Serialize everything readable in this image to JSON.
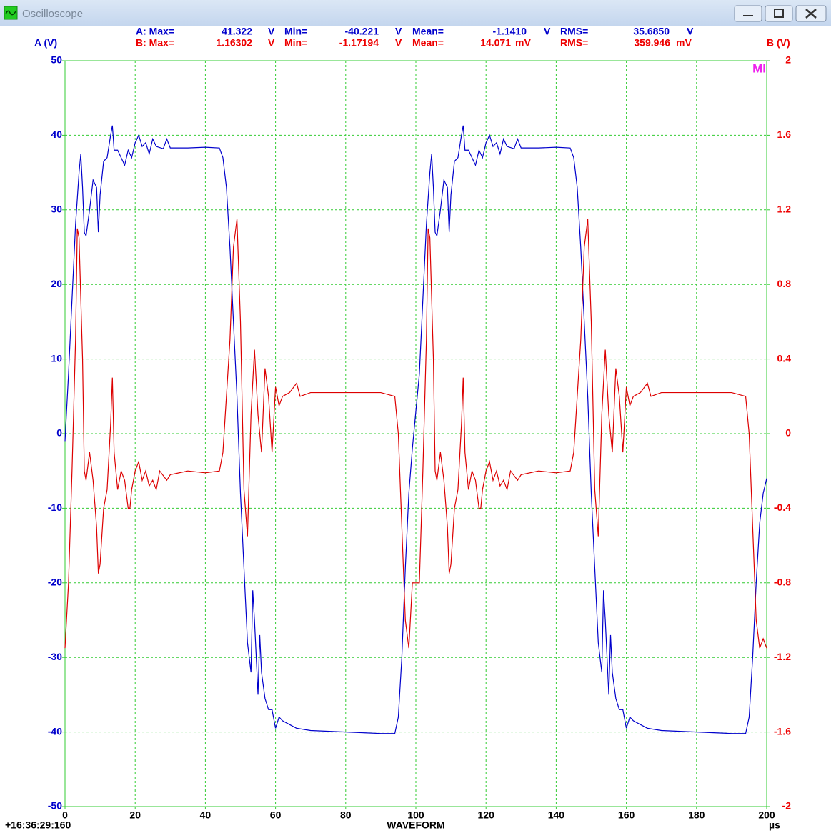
{
  "window": {
    "title": "Oscilloscope"
  },
  "stats": [
    {
      "color": "#0000cc",
      "items": [
        {
          "label": "A: Max=",
          "value": "41.322",
          "unit": "V"
        },
        {
          "label": "Min=",
          "value": "-40.221",
          "unit": "V"
        },
        {
          "label": "Mean=",
          "value": "-1.1410",
          "unit": "V"
        },
        {
          "label": "RMS=",
          "value": "35.6850",
          "unit": "V"
        }
      ]
    },
    {
      "color": "#ee0000",
      "items": [
        {
          "label": "B: Max=",
          "value": "1.16302",
          "unit": "V"
        },
        {
          "label": "Min=",
          "value": "-1.17194",
          "unit": "V"
        },
        {
          "label": "Mean=",
          "value": "14.071",
          "unit": "mV"
        },
        {
          "label": "RMS=",
          "value": "359.946",
          "unit": "mV"
        }
      ]
    }
  ],
  "chart_data": {
    "type": "line",
    "ylabel": "A (V)",
    "y2label": "B (V)",
    "xlabel": "WAVEFORM",
    "xunit": "µs",
    "timestamp": "+16:36:29:160",
    "marker": "MI",
    "xlim": [
      0,
      200
    ],
    "xticks": [
      0,
      20,
      40,
      60,
      80,
      100,
      120,
      140,
      160,
      180,
      200
    ],
    "ylim": [
      -50,
      50
    ],
    "yticks": [
      -50,
      -40,
      -30,
      -20,
      -10,
      0,
      10,
      20,
      30,
      40,
      50
    ],
    "y2lim": [
      -2,
      2
    ],
    "y2ticks": [
      -2,
      -1.6,
      -1.2,
      -0.8,
      -0.4,
      0,
      0.4,
      0.8,
      1.2,
      1.6,
      2
    ],
    "grid": true,
    "series": [
      {
        "name": "A",
        "color": "#0000cc",
        "axis": "y",
        "x": [
          0,
          1,
          2,
          3,
          4,
          4.5,
          5,
          5.5,
          6,
          7,
          8,
          9,
          9.5,
          10,
          11,
          12,
          13,
          13.5,
          14,
          15,
          16,
          17,
          18,
          19,
          20,
          21,
          22,
          23,
          24,
          25,
          26,
          28,
          29,
          30,
          35,
          40,
          44,
          45,
          46,
          47,
          48,
          49,
          50,
          51,
          52,
          53,
          53.5,
          54,
          55,
          55.5,
          56,
          57,
          58,
          59,
          60,
          61,
          62,
          64,
          66,
          70,
          80,
          90,
          94,
          95,
          96,
          97,
          98,
          99,
          101,
          102,
          103,
          104,
          104.5,
          105,
          105.5,
          106,
          107,
          108,
          109,
          109.5,
          110,
          111,
          112,
          113,
          113.5,
          114,
          115,
          116,
          117,
          118,
          119,
          120,
          121,
          122,
          123,
          124,
          125,
          126,
          128,
          129,
          130,
          135,
          140,
          144,
          145,
          146,
          147,
          148,
          149,
          150,
          151,
          152,
          153,
          153.5,
          154,
          155,
          155.5,
          156,
          157,
          158,
          159,
          160,
          161,
          162,
          164,
          166,
          170,
          180,
          190,
          194,
          195,
          196,
          197,
          198,
          199,
          200
        ],
        "values": [
          -1,
          8,
          18,
          28,
          35,
          37.5,
          33,
          27,
          26.5,
          30,
          34,
          33,
          27,
          32,
          36.5,
          37,
          40,
          41.3,
          38,
          38,
          37,
          36,
          38,
          37,
          39,
          40,
          38.5,
          39,
          37.5,
          39.5,
          38.5,
          38.2,
          39.5,
          38.3,
          38.3,
          38.4,
          38.3,
          37,
          33,
          25,
          15,
          5,
          -8,
          -18,
          -28,
          -32,
          -21,
          -25,
          -35,
          -27,
          -32,
          -35.5,
          -37,
          -37,
          -39.5,
          -38,
          -38.5,
          -39,
          -39.5,
          -39.8,
          -40,
          -40.2,
          -40.2,
          -38,
          -30,
          -18,
          -8,
          -2,
          8,
          18,
          28,
          35,
          37.5,
          33,
          27,
          26.5,
          30,
          34,
          33,
          27,
          32,
          36.5,
          37,
          40,
          41.3,
          38,
          38,
          37,
          36,
          38,
          37,
          39,
          40,
          38.5,
          39,
          37.5,
          39.5,
          38.5,
          38.2,
          39.5,
          38.3,
          38.3,
          38.4,
          38.3,
          37,
          33,
          25,
          15,
          5,
          -8,
          -18,
          -28,
          -32,
          -21,
          -25,
          -35,
          -27,
          -32,
          -35.5,
          -37,
          -37,
          -39.5,
          -38,
          -38.5,
          -39,
          -39.5,
          -39.8,
          -40,
          -40.2,
          -40.2,
          -38,
          -30,
          -20,
          -12,
          -8,
          -6
        ]
      },
      {
        "name": "B",
        "color": "#dd0000",
        "axis": "y2",
        "x": [
          0,
          1,
          2,
          3,
          3.5,
          4,
          5,
          5.5,
          6,
          7,
          8,
          9,
          9.5,
          10,
          11,
          12,
          13,
          13.5,
          14,
          15,
          16,
          17,
          18,
          18.5,
          19,
          20,
          21,
          22,
          23,
          24,
          25,
          26,
          27,
          29,
          30,
          35,
          40,
          44,
          45,
          46,
          47,
          48,
          49,
          50,
          51,
          52,
          53,
          54,
          55,
          56,
          57,
          58,
          59,
          60,
          61,
          62,
          64,
          66,
          67,
          70,
          80,
          90,
          94,
          95,
          96,
          97,
          98,
          99,
          101,
          102,
          103,
          103.5,
          104,
          105,
          105.5,
          106,
          107,
          108,
          109,
          109.5,
          110,
          111,
          112,
          113,
          113.5,
          114,
          115,
          116,
          117,
          118,
          118.5,
          119,
          120,
          121,
          122,
          123,
          124,
          125,
          126,
          127,
          129,
          130,
          135,
          140,
          144,
          145,
          146,
          147,
          148,
          149,
          150,
          151,
          152,
          153,
          154,
          155,
          156,
          157,
          158,
          159,
          160,
          161,
          162,
          164,
          166,
          167,
          170,
          180,
          190,
          194,
          195,
          196,
          197,
          198,
          199,
          200
        ],
        "values": [
          -1.15,
          -0.8,
          -0.2,
          0.5,
          1.1,
          1.05,
          0.4,
          -0.2,
          -0.25,
          -0.1,
          -0.25,
          -0.5,
          -0.75,
          -0.7,
          -0.4,
          -0.3,
          0.05,
          0.3,
          -0.1,
          -0.3,
          -0.2,
          -0.25,
          -0.4,
          -0.4,
          -0.3,
          -0.2,
          -0.15,
          -0.25,
          -0.2,
          -0.28,
          -0.25,
          -0.3,
          -0.2,
          -0.25,
          -0.22,
          -0.2,
          -0.21,
          -0.2,
          -0.1,
          0.2,
          0.5,
          1.0,
          1.15,
          0.6,
          -0.3,
          -0.55,
          0.1,
          0.45,
          0.1,
          -0.1,
          0.35,
          0.2,
          -0.1,
          0.25,
          0.15,
          0.2,
          0.22,
          0.27,
          0.2,
          0.22,
          0.22,
          0.22,
          0.2,
          0.0,
          -0.5,
          -1.0,
          -1.15,
          -0.8,
          -0.8,
          -0.2,
          0.5,
          1.1,
          1.05,
          0.4,
          -0.2,
          -0.25,
          -0.1,
          -0.25,
          -0.5,
          -0.75,
          -0.7,
          -0.4,
          -0.3,
          0.05,
          0.3,
          -0.1,
          -0.3,
          -0.2,
          -0.25,
          -0.4,
          -0.4,
          -0.3,
          -0.2,
          -0.15,
          -0.25,
          -0.2,
          -0.28,
          -0.25,
          -0.3,
          -0.2,
          -0.25,
          -0.22,
          -0.2,
          -0.21,
          -0.2,
          -0.1,
          0.2,
          0.5,
          1.0,
          1.15,
          0.6,
          -0.3,
          -0.55,
          0.1,
          0.45,
          0.1,
          -0.1,
          0.35,
          0.2,
          -0.1,
          0.25,
          0.15,
          0.2,
          0.22,
          0.27,
          0.2,
          0.22,
          0.22,
          0.22,
          0.2,
          0.0,
          -0.5,
          -1.0,
          -1.15,
          -1.1,
          -1.15
        ]
      }
    ]
  }
}
